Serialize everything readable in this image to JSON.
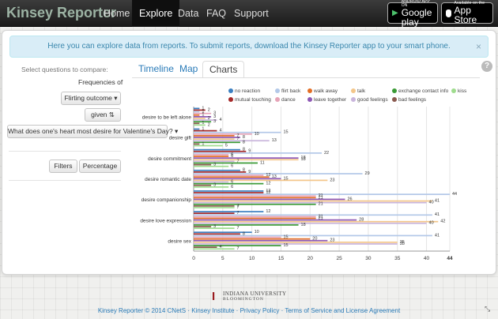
{
  "nav": {
    "brand": "Kinsey Reporter",
    "items": [
      "Home",
      "Explore",
      "Data",
      "FAQ",
      "Support"
    ],
    "active": "Explore",
    "badges": [
      {
        "small": "ANDROID APP ON",
        "large": "Google play",
        "icon": "play-icon"
      },
      {
        "small": "Available on the",
        "large": "App Store",
        "icon": "apple-icon"
      }
    ]
  },
  "alert": {
    "text": "Here you can explore data from reports. To submit reports, download the Kinsey Reporter app to your smart phone.",
    "close": "×"
  },
  "sidebar": {
    "select_label": "Select questions to compare:",
    "frequencies_label": "Frequencies of",
    "outcome_button": "Flirting outcome ▾",
    "given_button": "given ⇅",
    "question_button": "What does one's heart most desire for Valentine's Day? ▾",
    "filters_button": "Filters",
    "percentage_button": "Percentage"
  },
  "tabs": [
    "Timeline",
    "Map",
    "Charts"
  ],
  "active_tab": "Charts",
  "help_icon": "?",
  "chart_data": {
    "type": "bar",
    "orientation": "horizontal",
    "categories": [
      "desire to be left alone",
      "desire gift",
      "desire commitment",
      "desire romantic date",
      "desire companionship",
      "desire love expression",
      "desire sex"
    ],
    "series": [
      {
        "name": "no reaction",
        "color": "#3a7fc1",
        "values": [
          1,
          1,
          8,
          8,
          12,
          12,
          10
        ]
      },
      {
        "name": "mutual touching",
        "color": "#a52828",
        "values": [
          2,
          4,
          9,
          9,
          12,
          7,
          8
        ]
      },
      {
        "name": "flirt back",
        "color": "#b3c8e8",
        "values": [
          1,
          15,
          22,
          29,
          44,
          41,
          41
        ]
      },
      {
        "name": "dance",
        "color": "#e6a3b7",
        "values": [
          3,
          10,
          6,
          12,
          21,
          21,
          15
        ]
      },
      {
        "name": "walk away",
        "color": "#e36e25",
        "values": [
          1,
          7,
          6,
          13,
          21,
          21,
          20
        ]
      },
      {
        "name": "leave together",
        "color": "#8e58b5",
        "values": [
          3,
          8,
          18,
          15,
          26,
          28,
          23
        ]
      },
      {
        "name": "talk",
        "color": "#f3c68a",
        "values": [
          2,
          7,
          18,
          23,
          41,
          42,
          35
        ]
      },
      {
        "name": "good feelings",
        "color": "#c9b5dc",
        "values": [
          4,
          13,
          7,
          6,
          40,
          40,
          35
        ]
      },
      {
        "name": "exchange contact info",
        "color": "#3a9a35",
        "values": [
          3,
          8,
          11,
          12,
          21,
          18,
          15
        ]
      },
      {
        "name": "bad feelings",
        "color": "#8a5a4f",
        "values": [
          1,
          1,
          3,
          3,
          7,
          3,
          4
        ]
      },
      {
        "name": "kiss",
        "color": "#9fdc8e",
        "values": [
          2,
          5,
          6,
          6,
          7,
          7,
          7
        ]
      }
    ],
    "xticks": [
      0,
      5,
      10,
      15,
      20,
      25,
      30,
      35,
      40,
      44
    ],
    "xlim": [
      0,
      44
    ],
    "grid": true,
    "legend_position": "top"
  },
  "footer": {
    "logo_line1": "INDIANA UNIVERSITY",
    "logo_line2": "BLOOMINGTON",
    "logo_mark": "I",
    "text": "Kinsey Reporter © 2014 CNetS · Kinsey Institute · Privacy Policy · Terms of Service and License Agreement"
  }
}
